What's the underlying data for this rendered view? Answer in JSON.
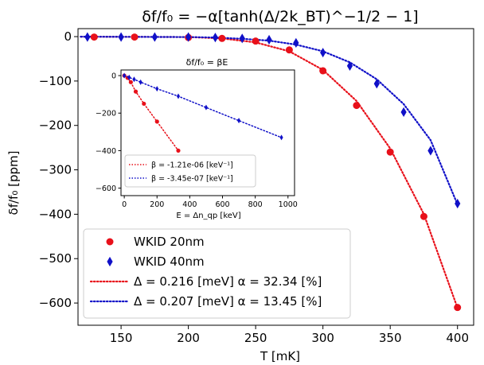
{
  "chart_data": [
    {
      "type": "scatter",
      "title": "δf/f₀ = −α[tanh(Δ/2k_BT)^−1/2 − 1]",
      "xlabel": "T [mK]",
      "ylabel": "δf/f₀ [ppm]",
      "xlim": [
        118,
        412
      ],
      "ylim": [
        -650,
        18
      ],
      "xticks": [
        150,
        200,
        250,
        300,
        350,
        400
      ],
      "yticks": [
        0,
        -100,
        -200,
        -300,
        -400,
        -500,
        -600
      ],
      "grid": false,
      "legend_position": "lower-left",
      "series": [
        {
          "name": "WKID 20nm",
          "kind": "points",
          "marker": "circle",
          "color": "#e8101a",
          "x": [
            130,
            160,
            200,
            225,
            250,
            275,
            300,
            325,
            350,
            375,
            400
          ],
          "y": [
            -1,
            -1,
            -2,
            -4,
            -10,
            -30,
            -77,
            -155,
            -260,
            -405,
            -610
          ]
        },
        {
          "name": "WKID 40nm",
          "kind": "points",
          "marker": "diamond",
          "color": "#1010c8",
          "x": [
            125,
            150,
            175,
            200,
            220,
            240,
            260,
            280,
            300,
            320,
            340,
            360,
            380,
            400
          ],
          "y": [
            -1,
            -1,
            -1,
            -1,
            -2,
            -4,
            -7,
            -14,
            -36,
            -66,
            -106,
            -170,
            -257,
            -376
          ]
        },
        {
          "name": "Δ = 0.216 [meV] α = 32.34 [%]",
          "kind": "dotted-line",
          "color": "#e8101a",
          "x": [
            120,
            200,
            225,
            250,
            275,
            300,
            325,
            350,
            375,
            400
          ],
          "y": [
            0,
            -1,
            -4,
            -13,
            -33,
            -75,
            -145,
            -252,
            -400,
            -611
          ]
        },
        {
          "name": "Δ = 0.207 [meV] α = 13.45 [%]",
          "kind": "dotted-line",
          "color": "#1010c8",
          "x": [
            120,
            200,
            220,
            240,
            260,
            280,
            300,
            320,
            340,
            360,
            380,
            400
          ],
          "y": [
            0,
            -1,
            -2,
            -5,
            -9,
            -18,
            -33,
            -58,
            -96,
            -152,
            -233,
            -378
          ]
        }
      ]
    },
    {
      "type": "scatter",
      "title": "δf/f₀ = βE",
      "xlabel": "E = Δn_qp [keV]",
      "ylabel": "",
      "xlim": [
        -20,
        1040
      ],
      "ylim": [
        -640,
        30
      ],
      "xticks": [
        0,
        200,
        400,
        600,
        800,
        1000
      ],
      "yticks": [
        0,
        -200,
        -400,
        -600
      ],
      "grid": false,
      "legend_position": "lower-left",
      "series": [
        {
          "name": "β = -1.21e-06 [keV⁻¹]",
          "kind": "points-with-dotted-line",
          "marker": "circle",
          "color": "#e8101a",
          "x": [
            0,
            20,
            40,
            70,
            120,
            200,
            330
          ],
          "y": [
            0,
            -12,
            -35,
            -85,
            -150,
            -245,
            -400
          ]
        },
        {
          "name": "β = -3.45e-07 [keV⁻¹]",
          "kind": "points-with-dotted-line",
          "marker": "diamond",
          "color": "#1010c8",
          "x": [
            0,
            30,
            60,
            100,
            200,
            330,
            500,
            700,
            960
          ],
          "y": [
            0,
            -10,
            -20,
            -35,
            -70,
            -110,
            -170,
            -240,
            -330
          ]
        }
      ]
    }
  ]
}
